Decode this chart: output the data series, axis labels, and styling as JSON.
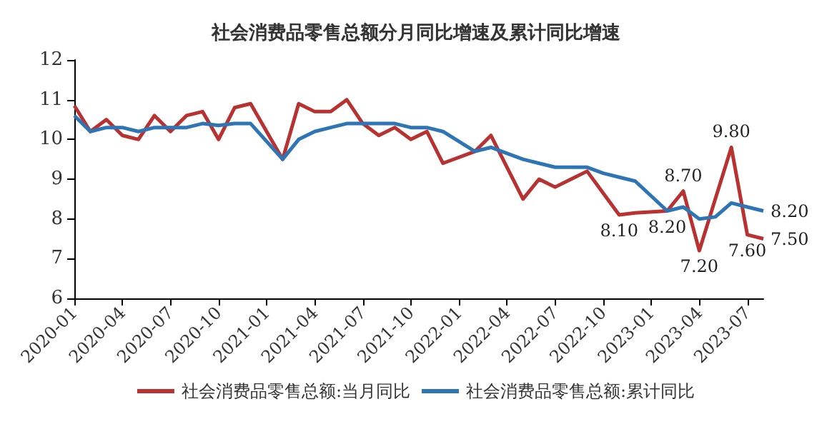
{
  "chart_data": {
    "type": "line",
    "title": "社会消费品零售总额分月同比增速及累计同比增速",
    "categories": [
      "2020-01",
      null,
      null,
      "2020-04",
      null,
      null,
      "2020-07",
      null,
      null,
      "2020-10",
      null,
      null,
      "2021-01",
      null,
      null,
      "2021-04",
      null,
      null,
      "2021-07",
      null,
      null,
      "2021-10",
      null,
      null,
      "2022-01",
      null,
      null,
      "2022-04",
      null,
      null,
      "2022-07",
      null,
      null,
      "2022-10",
      null,
      null,
      "2023-01",
      null,
      null,
      "2023-04",
      null,
      null,
      "2023-07",
      null
    ],
    "series": [
      {
        "name": "社会消费品零售总额:当月同比",
        "color": "#b83232",
        "values": [
          10.85,
          10.2,
          10.5,
          10.1,
          10.0,
          10.6,
          10.2,
          10.6,
          10.7,
          10.0,
          10.8,
          10.9,
          null,
          9.5,
          10.9,
          10.7,
          10.7,
          11.0,
          10.4,
          10.1,
          10.3,
          10.0,
          10.2,
          9.4,
          null,
          9.7,
          10.1,
          9.3,
          8.5,
          9.0,
          8.8,
          9.0,
          9.2,
          8.65,
          8.1,
          8.15,
          null,
          8.2,
          8.7,
          7.2,
          8.5,
          9.8,
          7.6,
          7.5
        ],
        "value_labels": [
          null,
          null,
          null,
          null,
          null,
          null,
          null,
          null,
          null,
          null,
          null,
          null,
          null,
          null,
          null,
          null,
          null,
          null,
          null,
          null,
          null,
          null,
          null,
          null,
          null,
          null,
          null,
          null,
          null,
          null,
          null,
          null,
          null,
          null,
          "8.10",
          null,
          null,
          "8.20",
          "8.70",
          "7.20",
          null,
          "9.80",
          "7.60",
          "7.50"
        ]
      },
      {
        "name": "社会消费品零售总额:累计同比",
        "color": "#2e75b6",
        "values": [
          10.6,
          10.2,
          10.3,
          10.3,
          10.2,
          10.3,
          10.3,
          10.3,
          10.4,
          10.35,
          10.4,
          10.4,
          null,
          9.5,
          10.0,
          10.2,
          10.3,
          10.4,
          10.4,
          10.4,
          10.4,
          10.3,
          10.3,
          10.2,
          null,
          9.7,
          9.8,
          9.65,
          9.5,
          9.4,
          9.3,
          9.3,
          9.3,
          9.15,
          9.05,
          8.95,
          null,
          8.2,
          8.3,
          8.0,
          8.05,
          8.4,
          8.3,
          8.2
        ],
        "value_labels": [
          null,
          null,
          null,
          null,
          null,
          null,
          null,
          null,
          null,
          null,
          null,
          null,
          null,
          null,
          null,
          null,
          null,
          null,
          null,
          null,
          null,
          null,
          null,
          null,
          null,
          null,
          null,
          null,
          null,
          null,
          null,
          null,
          null,
          null,
          null,
          null,
          null,
          null,
          null,
          null,
          null,
          null,
          null,
          "8.20"
        ]
      }
    ],
    "ylim": [
      6,
      12
    ],
    "yticks": [
      6,
      7,
      8,
      9,
      10,
      11,
      12
    ],
    "grid": false,
    "legend": "bottom",
    "marker": "none",
    "line_style": "solid"
  }
}
